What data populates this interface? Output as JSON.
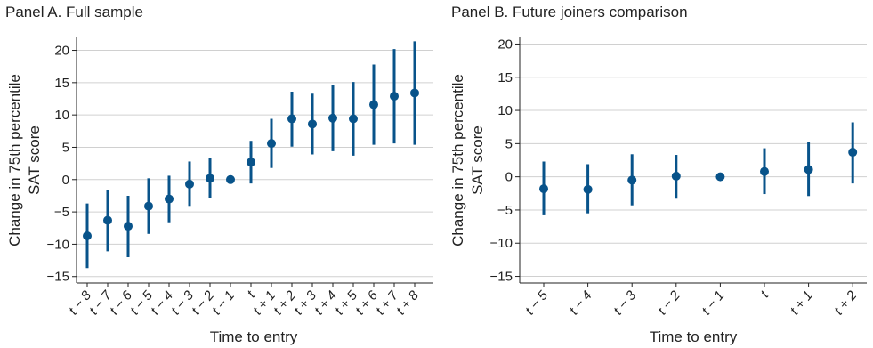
{
  "panels": [
    {
      "title": "Panel A. Full sample"
    },
    {
      "title": "Panel B. Future joiners comparison"
    }
  ],
  "colors": {
    "series": "#08538a",
    "grid": "#d0d0d0",
    "axis": "#222222"
  },
  "chart_data": [
    {
      "type": "scatter",
      "title": "Panel A. Full sample",
      "xlabel": "Time to entry",
      "ylabel": "Change in 75th percentile SAT score",
      "ylim": [
        -16,
        22
      ],
      "yticks": [
        -15,
        -10,
        -5,
        0,
        5,
        10,
        15,
        20
      ],
      "grid": true,
      "error_bars": true,
      "categories": [
        "t − 8",
        "t − 7",
        "t − 6",
        "t − 5",
        "t − 4",
        "t − 3",
        "t − 2",
        "t − 1",
        "t",
        "t + 1",
        "t + 2",
        "t + 3",
        "t + 4",
        "t + 5",
        "t + 6",
        "t + 7",
        "t + 8"
      ],
      "values": [
        -8.7,
        -6.3,
        -7.2,
        -4.1,
        -3.0,
        -0.7,
        0.2,
        0.0,
        2.7,
        5.6,
        9.4,
        8.6,
        9.5,
        9.4,
        11.6,
        12.9,
        13.4
      ],
      "lower": [
        -13.7,
        -11.1,
        -12.0,
        -8.4,
        -6.6,
        -4.2,
        -2.9,
        0.0,
        -0.6,
        1.8,
        5.1,
        3.9,
        4.4,
        3.7,
        5.4,
        5.6,
        5.4
      ],
      "upper": [
        -3.7,
        -1.6,
        -2.5,
        0.2,
        0.6,
        2.8,
        3.3,
        0.0,
        6.0,
        9.4,
        13.6,
        13.3,
        14.6,
        15.1,
        17.8,
        20.2,
        21.4
      ]
    },
    {
      "type": "scatter",
      "title": "Panel B. Future joiners comparison",
      "xlabel": "Time to entry",
      "ylabel": "Change in 75th percentile SAT score",
      "ylim": [
        -16,
        21
      ],
      "yticks": [
        -15,
        -10,
        -5,
        0,
        5,
        10,
        15,
        20
      ],
      "grid": true,
      "error_bars": true,
      "categories": [
        "t − 5",
        "t − 4",
        "t − 3",
        "t − 2",
        "t − 1",
        "t",
        "t + 1",
        "t + 2"
      ],
      "values": [
        -1.8,
        -1.9,
        -0.5,
        0.1,
        0.0,
        0.8,
        1.1,
        3.7
      ],
      "lower": [
        -5.8,
        -5.5,
        -4.3,
        -3.3,
        0.0,
        -2.6,
        -2.9,
        -1.0
      ],
      "upper": [
        2.3,
        1.9,
        3.4,
        3.3,
        0.0,
        4.3,
        5.2,
        8.2
      ]
    }
  ]
}
